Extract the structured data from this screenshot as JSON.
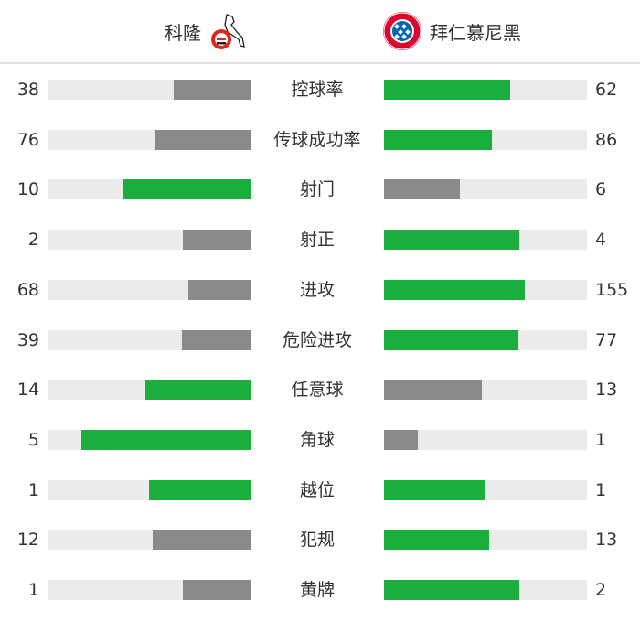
{
  "home": {
    "name": "科隆",
    "logo_icon": "fc-koln-crest",
    "logo_text": "1.FC 1948"
  },
  "away": {
    "name": "拜仁慕尼黑",
    "logo_icon": "fc-bayern-crest",
    "logo_text": "FC BAYERN MÜNCHEN"
  },
  "colors": {
    "leader": "#1aaf3c",
    "trailer": "#8a8a8a",
    "track": "#ebebeb"
  },
  "stats": [
    {
      "label": "控球率",
      "home": "38",
      "away": "62"
    },
    {
      "label": "传球成功率",
      "home": "76",
      "away": "86"
    },
    {
      "label": "射门",
      "home": "10",
      "away": "6"
    },
    {
      "label": "射正",
      "home": "2",
      "away": "4"
    },
    {
      "label": "进攻",
      "home": "68",
      "away": "155"
    },
    {
      "label": "危险进攻",
      "home": "39",
      "away": "77"
    },
    {
      "label": "任意球",
      "home": "14",
      "away": "13"
    },
    {
      "label": "角球",
      "home": "5",
      "away": "1"
    },
    {
      "label": "越位",
      "home": "1",
      "away": "1"
    },
    {
      "label": "犯规",
      "home": "12",
      "away": "13"
    },
    {
      "label": "黄牌",
      "home": "1",
      "away": "2"
    }
  ]
}
